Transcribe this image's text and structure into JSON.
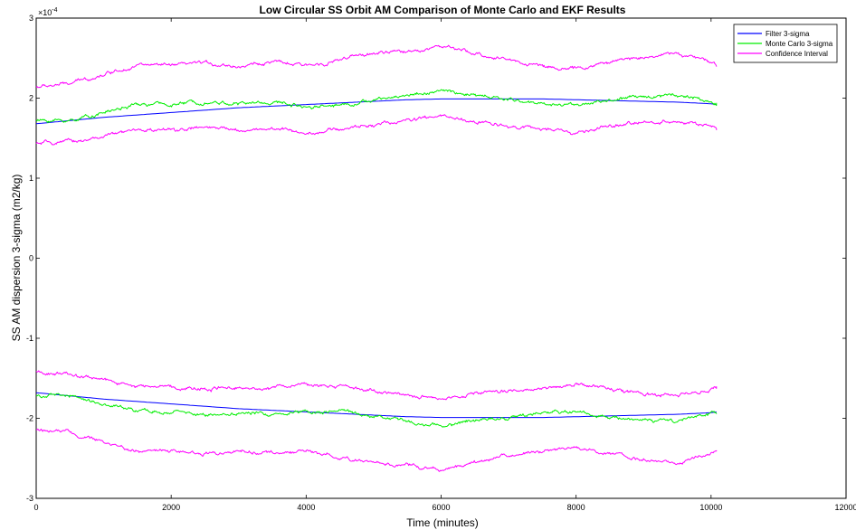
{
  "chart_data": {
    "type": "line",
    "title": "Low Circular SS Orbit AM Comparison of Monte Carlo and EKF Results",
    "xlabel": "Time (minutes)",
    "ylabel": "SS AM dispersion 3-sigma (m2/kg)",
    "xlim": [
      0,
      12000
    ],
    "ylim": [
      -3,
      3
    ],
    "y_scale_note": "×10^-4",
    "y_exponent_base": "×10",
    "y_exponent_power": "-4",
    "x_ticks": [
      "0",
      "2000",
      "4000",
      "6000",
      "8000",
      "10000",
      "12000"
    ],
    "y_ticks": [
      "-3",
      "-2",
      "-1",
      "0",
      "1",
      "2",
      "3"
    ],
    "x_tick_values": [
      0,
      2000,
      4000,
      6000,
      8000,
      10000,
      12000
    ],
    "y_tick_values": [
      -3,
      -2,
      -1,
      0,
      1,
      2,
      3
    ],
    "grid": false,
    "legend_position": "top-right",
    "legend": [
      {
        "label": "Filter 3-sigma",
        "color": "#0000ff"
      },
      {
        "label": "Monte Carlo 3-sigma",
        "color": "#00ee00"
      },
      {
        "label": "Confidence Interval",
        "color": "#ff00ff"
      }
    ],
    "x": [
      0,
      500,
      1000,
      1500,
      2000,
      2500,
      3000,
      3500,
      4000,
      4500,
      5000,
      5500,
      6000,
      6500,
      7000,
      7500,
      8000,
      8500,
      9000,
      9500,
      10000,
      10080
    ],
    "series": [
      {
        "name": "Filter 3-sigma",
        "color": "#0000ff",
        "noise": 0,
        "values": [
          1.68,
          1.72,
          1.76,
          1.79,
          1.82,
          1.85,
          1.88,
          1.9,
          1.92,
          1.94,
          1.96,
          1.98,
          1.99,
          1.99,
          1.99,
          1.99,
          1.98,
          1.97,
          1.96,
          1.95,
          1.93,
          1.92
        ]
      },
      {
        "name": "Monte Carlo 3-sigma",
        "color": "#00ee00",
        "noise": 0.012,
        "values": [
          1.72,
          1.72,
          1.82,
          1.92,
          1.92,
          1.96,
          1.93,
          1.95,
          1.9,
          1.92,
          1.97,
          2.04,
          2.09,
          2.03,
          1.98,
          1.93,
          1.92,
          1.97,
          2.02,
          2.05,
          1.95,
          1.94
        ]
      },
      {
        "name": "Confidence Interval",
        "color": "#ff00ff",
        "noise": 0.012,
        "values": [
          2.14,
          2.18,
          2.3,
          2.42,
          2.4,
          2.44,
          2.4,
          2.45,
          2.4,
          2.48,
          2.56,
          2.58,
          2.65,
          2.55,
          2.48,
          2.4,
          2.36,
          2.45,
          2.52,
          2.56,
          2.44,
          2.4
        ]
      },
      {
        "name": "Confidence Interval",
        "color": "#ff00ff",
        "noise": 0.012,
        "values": [
          1.43,
          1.45,
          1.52,
          1.6,
          1.6,
          1.63,
          1.6,
          1.62,
          1.57,
          1.61,
          1.67,
          1.72,
          1.77,
          1.7,
          1.66,
          1.61,
          1.56,
          1.64,
          1.7,
          1.72,
          1.64,
          1.6
        ]
      },
      {
        "name": "Filter 3-sigma",
        "color": "#0000ff",
        "noise": 0,
        "values": [
          -1.68,
          -1.72,
          -1.76,
          -1.79,
          -1.82,
          -1.85,
          -1.88,
          -1.9,
          -1.92,
          -1.94,
          -1.96,
          -1.98,
          -1.99,
          -1.99,
          -1.99,
          -1.99,
          -1.98,
          -1.97,
          -1.96,
          -1.95,
          -1.93,
          -1.92
        ]
      },
      {
        "name": "Monte Carlo 3-sigma",
        "color": "#00ee00",
        "noise": 0.012,
        "values": [
          -1.72,
          -1.72,
          -1.82,
          -1.92,
          -1.92,
          -1.96,
          -1.93,
          -1.95,
          -1.9,
          -1.92,
          -1.97,
          -2.04,
          -2.09,
          -2.03,
          -1.98,
          -1.93,
          -1.92,
          -1.97,
          -2.02,
          -2.05,
          -1.95,
          -1.94
        ]
      },
      {
        "name": "Confidence Interval",
        "color": "#ff00ff",
        "noise": 0.012,
        "values": [
          -1.43,
          -1.45,
          -1.52,
          -1.6,
          -1.6,
          -1.63,
          -1.6,
          -1.62,
          -1.57,
          -1.61,
          -1.67,
          -1.72,
          -1.77,
          -1.7,
          -1.66,
          -1.61,
          -1.56,
          -1.64,
          -1.7,
          -1.72,
          -1.64,
          -1.6
        ]
      },
      {
        "name": "Confidence Interval",
        "color": "#ff00ff",
        "noise": 0.012,
        "values": [
          -2.14,
          -2.18,
          -2.3,
          -2.42,
          -2.4,
          -2.44,
          -2.4,
          -2.45,
          -2.4,
          -2.48,
          -2.56,
          -2.58,
          -2.65,
          -2.55,
          -2.48,
          -2.4,
          -2.36,
          -2.45,
          -2.52,
          -2.56,
          -2.44,
          -2.4
        ]
      }
    ]
  }
}
